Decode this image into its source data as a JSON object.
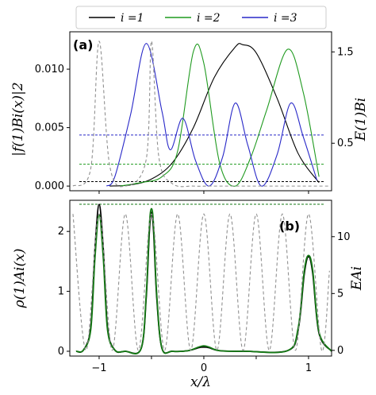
{
  "chart_data": [
    {
      "type": "line",
      "panel_tag": "(a)",
      "xlabel": "",
      "ylabel": "|f(1)Bi(x)|2",
      "ylabel_right": "E(1)Bi",
      "xlim": [
        -1.28,
        1.22
      ],
      "ylim": [
        -0.0004,
        0.0132
      ],
      "ylim_right": [
        -0.02,
        1.72
      ],
      "yticks": [
        0.0,
        0.005,
        0.01
      ],
      "ytick_labels": [
        "0.000",
        "0.005",
        "0.010"
      ],
      "yticks_right": [
        0.5,
        1.5
      ],
      "ytick_labels_right": [
        "0.5",
        "1.5"
      ],
      "xticks": [
        -1,
        0,
        1
      ],
      "legend": {
        "placement": "top",
        "entries": [
          {
            "label": "i =1",
            "color": "#000000"
          },
          {
            "label": "i =2",
            "color": "#1f9a1f"
          },
          {
            "label": "i =3",
            "color": "#2828c8"
          }
        ]
      },
      "series": [
        {
          "name": "i =1",
          "color": "#000000",
          "x": [
            -0.9,
            -0.7,
            -0.5,
            -0.3,
            -0.1,
            0.1,
            0.3,
            0.37,
            0.5,
            0.7,
            0.9,
            1.1
          ],
          "y": [
            0.0,
            0.0001,
            0.0006,
            0.002,
            0.005,
            0.0093,
            0.0119,
            0.0121,
            0.0114,
            0.0075,
            0.0028,
            0.0003
          ]
        },
        {
          "name": "i =2",
          "color": "#1f9a1f",
          "x": [
            -0.8,
            -0.6,
            -0.4,
            -0.25,
            -0.1,
            0.0,
            0.15,
            0.3,
            0.45,
            0.6,
            0.8,
            0.95,
            1.1
          ],
          "y": [
            0.0,
            0.0003,
            0.0008,
            0.003,
            0.0115,
            0.0105,
            0.002,
            0.0,
            0.0025,
            0.0065,
            0.0117,
            0.008,
            0.0008
          ]
        },
        {
          "name": "i =3",
          "color": "#2828c8",
          "x": [
            -0.93,
            -0.85,
            -0.7,
            -0.55,
            -0.4,
            -0.32,
            -0.2,
            -0.08,
            0.05,
            0.18,
            0.3,
            0.42,
            0.55,
            0.7,
            0.83,
            0.95,
            1.08
          ],
          "y": [
            0.0,
            0.0008,
            0.0061,
            0.0122,
            0.0064,
            0.0031,
            0.0058,
            0.0022,
            0.0,
            0.0025,
            0.0071,
            0.0035,
            0.0,
            0.0027,
            0.0071,
            0.0042,
            0.0005
          ]
        },
        {
          "name": "",
          "style": "dashed",
          "color": "#909090",
          "x": [
            -1.25,
            -1.08,
            -1.0,
            -0.9,
            -0.75,
            -0.55,
            -0.5,
            -0.43,
            -0.3,
            -0.1,
            0.05,
            0.2,
            0.35,
            0.5,
            0.7,
            0.9,
            1.05,
            1.2
          ],
          "y": [
            0.0,
            0.0015,
            0.0124,
            0.0018,
            0.0,
            0.0023,
            0.0124,
            0.0025,
            0.0002,
            0.0,
            0.0,
            0.0,
            0.0,
            0.0,
            0.0,
            0.0,
            0.0,
            0.0
          ]
        }
      ],
      "hlines": [
        {
          "color": "#000000",
          "y_right": 0.08
        },
        {
          "color": "#1f9a1f",
          "y_right": 0.27
        },
        {
          "color": "#2828c8",
          "y_right": 0.59
        }
      ]
    },
    {
      "type": "line",
      "panel_tag": "(b)",
      "xlabel": "x/λ",
      "ylabel": "ρ(1)Ai(x)",
      "ylabel_right": "EAi",
      "xlim": [
        -1.28,
        1.22
      ],
      "ylim": [
        -0.08,
        2.52
      ],
      "ylim_right": [
        -0.5,
        13.2
      ],
      "yticks": [
        0,
        1,
        2
      ],
      "ytick_labels": [
        "0",
        "1",
        "2"
      ],
      "yticks_right": [
        0,
        5,
        10
      ],
      "ytick_labels_right": [
        "0",
        "5",
        "10"
      ],
      "xticks": [
        -1,
        -0.5,
        0,
        0.5,
        1
      ],
      "xtick_labels": [
        "−1",
        "",
        "0",
        "",
        "1"
      ],
      "series": [
        {
          "name": "",
          "color": "#000000",
          "x": [
            -1.22,
            -1.15,
            -1.08,
            -1.04,
            -1.0,
            -0.96,
            -0.92,
            -0.85,
            -0.75,
            -0.6,
            -0.55,
            -0.52,
            -0.5,
            -0.48,
            -0.45,
            -0.4,
            -0.3,
            -0.15,
            -0.05,
            0.0,
            0.05,
            0.15,
            0.4,
            0.8,
            0.9,
            0.96,
            1.0,
            1.04,
            1.1,
            1.22
          ],
          "y": [
            0.0,
            0.02,
            0.4,
            1.7,
            2.45,
            1.7,
            0.4,
            0.02,
            0.0,
            0.04,
            0.9,
            2.0,
            2.32,
            2.0,
            0.9,
            0.05,
            0.0,
            0.01,
            0.06,
            0.07,
            0.06,
            0.01,
            0.0,
            0.01,
            0.35,
            1.3,
            1.58,
            1.3,
            0.3,
            0.0
          ]
        },
        {
          "name": "",
          "color": "#157a15",
          "x": [
            -1.22,
            -1.15,
            -1.08,
            -1.04,
            -1.0,
            -0.96,
            -0.92,
            -0.85,
            -0.75,
            -0.6,
            -0.55,
            -0.52,
            -0.5,
            -0.48,
            -0.45,
            -0.4,
            -0.3,
            -0.15,
            -0.05,
            0.0,
            0.05,
            0.15,
            0.4,
            0.8,
            0.9,
            0.96,
            1.0,
            1.04,
            1.1,
            1.22
          ],
          "y": [
            0.0,
            0.02,
            0.36,
            1.55,
            2.28,
            1.55,
            0.36,
            0.02,
            0.0,
            0.04,
            0.95,
            2.1,
            2.38,
            2.1,
            0.95,
            0.05,
            0.0,
            0.01,
            0.07,
            0.09,
            0.07,
            0.01,
            0.0,
            0.01,
            0.38,
            1.35,
            1.6,
            1.35,
            0.32,
            0.0
          ]
        },
        {
          "name": "",
          "style": "dashed",
          "color": "#909090",
          "x": [
            -1.25,
            -1.125,
            -1.0,
            -0.875,
            -0.75,
            -0.625,
            -0.5,
            -0.375,
            -0.25,
            -0.125,
            0.0,
            0.125,
            0.25,
            0.375,
            0.5,
            0.625,
            0.75,
            0.875,
            1.0,
            1.125,
            1.2
          ],
          "y_right": [
            12.0,
            0.0,
            12.0,
            0.0,
            12.0,
            0.0,
            12.0,
            0.0,
            12.0,
            0.0,
            12.0,
            0.0,
            12.0,
            0.0,
            12.0,
            0.0,
            12.0,
            0.0,
            12.0,
            0.0,
            7.0
          ]
        }
      ],
      "hlines": [
        {
          "color": "#000000",
          "y_right": 12.85
        },
        {
          "color": "#157a15",
          "y_right": 12.85
        }
      ]
    }
  ]
}
